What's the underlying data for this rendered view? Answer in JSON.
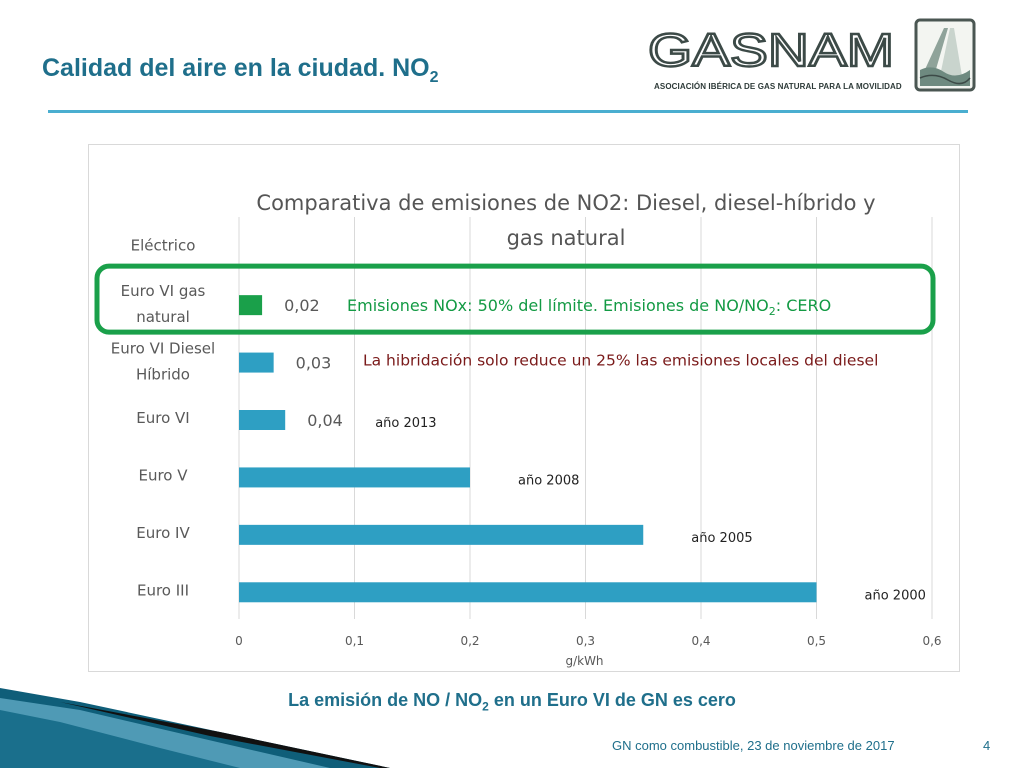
{
  "slide": {
    "title": "Calidad del aire en la ciudad. NO",
    "title_sub": "2",
    "caption_pre": "La emisión de NO / NO",
    "caption_sub": "2",
    "caption_post": " en un Euro VI de GN es cero",
    "footer": "GN como combustible, 23 de noviembre de 2017",
    "page_number": "4"
  },
  "logo": {
    "name": "GASNAM",
    "subtitle": "ASOCIACIÓN IBÉRICA DE GAS NATURAL PARA LA MOVILIDAD",
    "icon": "road-emblem-icon"
  },
  "colors": {
    "accent": "#1f6f8b",
    "bar": "#2e9fc3",
    "gn_bar": "#1aa04a",
    "highlight": "#1aa04a",
    "annotation_green": "#139a44",
    "annotation_red": "#7a1a1a",
    "axis_text": "#595959"
  },
  "chart_data": {
    "type": "bar",
    "orientation": "horizontal",
    "title": "Comparativa de emisiones de NO2: Diesel, diesel-híbrido y gas natural",
    "categories": [
      "Eléctrico",
      "Euro VI gas natural",
      "Euro VI Diesel Híbrido",
      "Euro VI",
      "Euro V",
      "Euro IV",
      "Euro III"
    ],
    "values": [
      0,
      0.02,
      0.03,
      0.04,
      0.2,
      0.35,
      0.5
    ],
    "data_labels": [
      "",
      "0,02",
      "0,03",
      "0,04",
      "",
      "",
      ""
    ],
    "year_labels": [
      "",
      "",
      "",
      "año 2013",
      "año 2008",
      "año 2005",
      "año 2000"
    ],
    "xlabel": "g/kWh",
    "xlim": [
      0,
      0.6
    ],
    "xticks": [
      "0",
      "0,1",
      "0,2",
      "0,3",
      "0,4",
      "0,5",
      "0,6"
    ],
    "grid": true,
    "highlight_category": "Euro VI gas natural",
    "annotations": {
      "gn_pre": "Emisiones NOx: 50% del límite. Emisiones de NO/NO",
      "gn_sub": "2",
      "gn_post": ": CERO",
      "hybrid": "La hibridación  solo reduce  un 25% las emisiones locales del diesel"
    }
  }
}
